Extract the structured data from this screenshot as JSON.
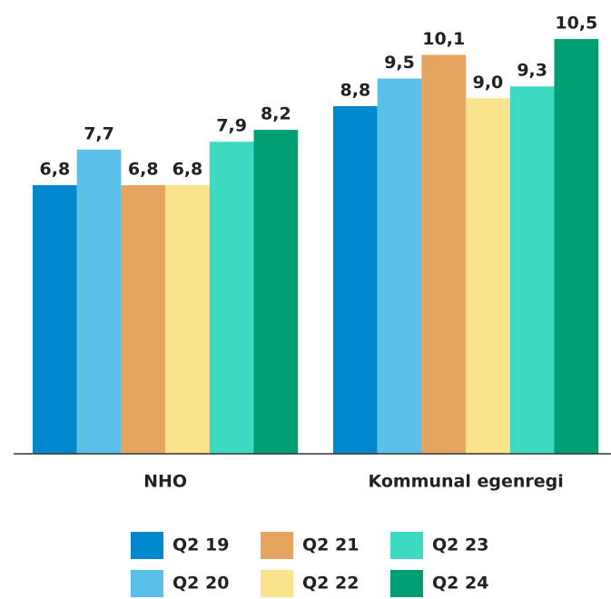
{
  "chart_data": {
    "type": "bar",
    "categories": [
      "NHO",
      "Kommunal egenregi"
    ],
    "ylim": [
      0,
      10.5
    ],
    "series": [
      {
        "name": "Q2 19",
        "color": "#0088cc",
        "values": [
          6.8,
          8.8
        ],
        "value_labels": [
          "6,8",
          "8,8"
        ]
      },
      {
        "name": "Q2 20",
        "color": "#5bc0e8",
        "values": [
          7.7,
          9.5
        ],
        "value_labels": [
          "7,7",
          "9,5"
        ]
      },
      {
        "name": "Q2 21",
        "color": "#e6a55e",
        "values": [
          6.8,
          10.1
        ],
        "value_labels": [
          "6,8",
          "10,1"
        ]
      },
      {
        "name": "Q2 22",
        "color": "#fae38a",
        "values": [
          6.8,
          9.0
        ],
        "value_labels": [
          "6,8",
          "9,0"
        ]
      },
      {
        "name": "Q2 23",
        "color": "#3dd9c1",
        "values": [
          7.9,
          9.3
        ],
        "value_labels": [
          "7,9",
          "9,3"
        ]
      },
      {
        "name": "Q2 24",
        "color": "#009e73",
        "values": [
          8.2,
          10.5
        ],
        "value_labels": [
          "8,2",
          "10,5"
        ]
      }
    ]
  }
}
